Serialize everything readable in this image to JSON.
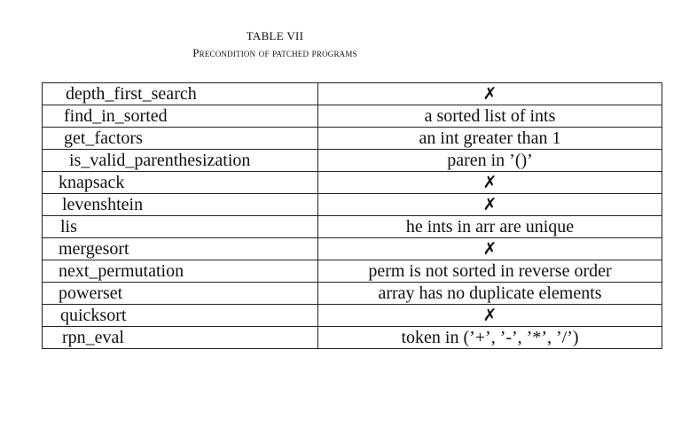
{
  "caption": {
    "number": "TABLE VII",
    "title": "Precondition of patched programs"
  },
  "rows": [
    {
      "program": "depth_first_search",
      "precondition": "✗",
      "none": true
    },
    {
      "program": "find_in_sorted",
      "precondition": "a sorted list of ints",
      "none": false
    },
    {
      "program": "get_factors",
      "precondition": "an int greater than 1",
      "none": false
    },
    {
      "program": "is_valid_parenthesization",
      "precondition": "paren in ’()’",
      "none": false
    },
    {
      "program": "knapsack",
      "precondition": "✗",
      "none": true
    },
    {
      "program": "levenshtein",
      "precondition": "✗",
      "none": true
    },
    {
      "program": "lis",
      "precondition": "he ints in arr are unique",
      "none": false
    },
    {
      "program": "mergesort",
      "precondition": "✗",
      "none": true
    },
    {
      "program": "next_permutation",
      "precondition": "perm is not sorted in reverse order",
      "none": false
    },
    {
      "program": "powerset",
      "precondition": "array has no duplicate elements",
      "none": false
    },
    {
      "program": "quicksort",
      "precondition": "✗",
      "none": true
    },
    {
      "program": "rpn_eval",
      "precondition": "token in (’+’, ’-’, ’*’, ’/’)",
      "none": false
    }
  ]
}
